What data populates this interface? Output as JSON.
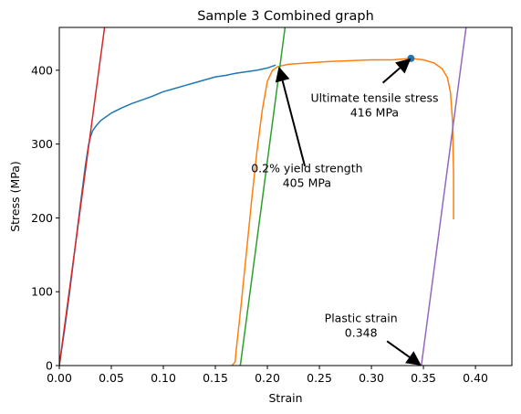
{
  "chart_data": {
    "type": "line",
    "title": "Sample 3 Combined graph",
    "xlabel": "Strain",
    "ylabel": "Stress (MPa)",
    "xlim": [
      0.0,
      0.435
    ],
    "ylim": [
      0,
      458
    ],
    "xticks": [
      0.0,
      0.05,
      0.1,
      0.15,
      0.2,
      0.25,
      0.3,
      0.35,
      0.4
    ],
    "xtick_labels": [
      "0.00",
      "0.05",
      "0.10",
      "0.15",
      "0.20",
      "0.25",
      "0.30",
      "0.35",
      "0.40"
    ],
    "yticks": [
      0,
      100,
      200,
      300,
      400
    ],
    "ytick_labels": [
      "0",
      "100",
      "200",
      "300",
      "400"
    ],
    "grid": false,
    "legend": "none",
    "series": [
      {
        "color": "#1f77b4",
        "x": [
          0.0,
          0.005,
          0.01,
          0.015,
          0.02,
          0.025,
          0.028,
          0.03,
          0.032,
          0.035,
          0.04,
          0.05,
          0.06,
          0.07,
          0.08,
          0.09,
          0.1,
          0.11,
          0.12,
          0.13,
          0.14,
          0.15,
          0.16,
          0.17,
          0.18,
          0.19,
          0.2,
          0.208
        ],
        "y": [
          0,
          48,
          100,
          158,
          215,
          270,
          298,
          310,
          318,
          324,
          332,
          342,
          349,
          355,
          360,
          365,
          371,
          375,
          379,
          383,
          387,
          391,
          393,
          396,
          398,
          400,
          403,
          407
        ]
      },
      {
        "color": "#ff7f0e",
        "x": [
          0.166,
          0.169,
          0.17,
          0.175,
          0.18,
          0.185,
          0.19,
          0.195,
          0.2,
          0.205,
          0.21,
          0.22,
          0.24,
          0.26,
          0.28,
          0.3,
          0.32,
          0.338,
          0.35,
          0.36,
          0.368,
          0.373,
          0.376,
          0.378,
          0.379,
          0.379
        ],
        "y": [
          0,
          5,
          20,
          85,
          155,
          225,
          290,
          345,
          385,
          400,
          405,
          408,
          410,
          412,
          413,
          414,
          414,
          416,
          414,
          410,
          402,
          390,
          370,
          330,
          260,
          198
        ]
      },
      {
        "color": "#2ca02c",
        "x": [
          0.174,
          0.217
        ],
        "y": [
          0,
          458
        ]
      },
      {
        "color": "#d62728",
        "x": [
          0.0,
          0.0435
        ],
        "y": [
          0,
          458
        ]
      },
      {
        "color": "#9467bd",
        "x": [
          0.348,
          0.391
        ],
        "y": [
          0,
          458
        ]
      }
    ],
    "points": [
      {
        "x": 0.338,
        "y": 416,
        "color": "#1f77b4"
      }
    ],
    "annotations": [
      {
        "line1": "Ultimate tensile stress",
        "line2": "416 MPa",
        "xy": [
          0.338,
          416
        ],
        "arrow_tail": [
          0.311,
          383
        ],
        "text_at": [
          0.303,
          357
        ]
      },
      {
        "line1": "0.2% yield strength",
        "line2": "405 MPa",
        "xy": [
          0.211,
          405
        ],
        "arrow_tail": [
          0.236,
          270
        ],
        "text_at": [
          0.238,
          262
        ]
      },
      {
        "line1": "Plastic strain",
        "line2": "0.348",
        "xy": [
          0.348,
          0
        ],
        "arrow_tail": [
          0.315,
          33
        ],
        "text_at": [
          0.29,
          59
        ]
      }
    ]
  }
}
